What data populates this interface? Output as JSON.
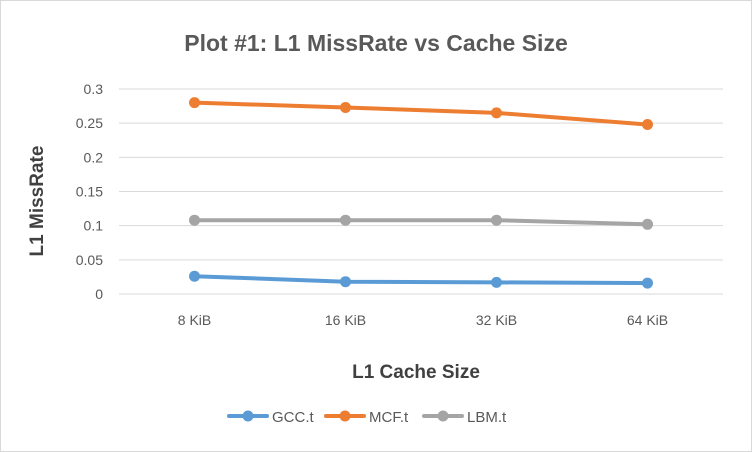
{
  "chart_data": {
    "type": "line",
    "title": "Plot #1: L1 MissRate vs Cache Size",
    "xlabel": "L1 Cache Size",
    "ylabel": "L1 MissRate",
    "categories": [
      "8 KiB",
      "16 KiB",
      "32 KiB",
      "64 KiB"
    ],
    "ylim": [
      0,
      0.3
    ],
    "yticks": [
      "0",
      "0.05",
      "0.1",
      "0.15",
      "0.2",
      "0.25",
      "0.3"
    ],
    "grid": true,
    "legend_position": "bottom",
    "series": [
      {
        "name": "GCC.t",
        "color": "#5b9bd5",
        "values": [
          0.026,
          0.018,
          0.017,
          0.016
        ]
      },
      {
        "name": "MCF.t",
        "color": "#ed7d31",
        "values": [
          0.28,
          0.273,
          0.265,
          0.248
        ]
      },
      {
        "name": "LBM.t",
        "color": "#a5a5a5",
        "values": [
          0.108,
          0.108,
          0.108,
          0.102
        ]
      }
    ]
  }
}
